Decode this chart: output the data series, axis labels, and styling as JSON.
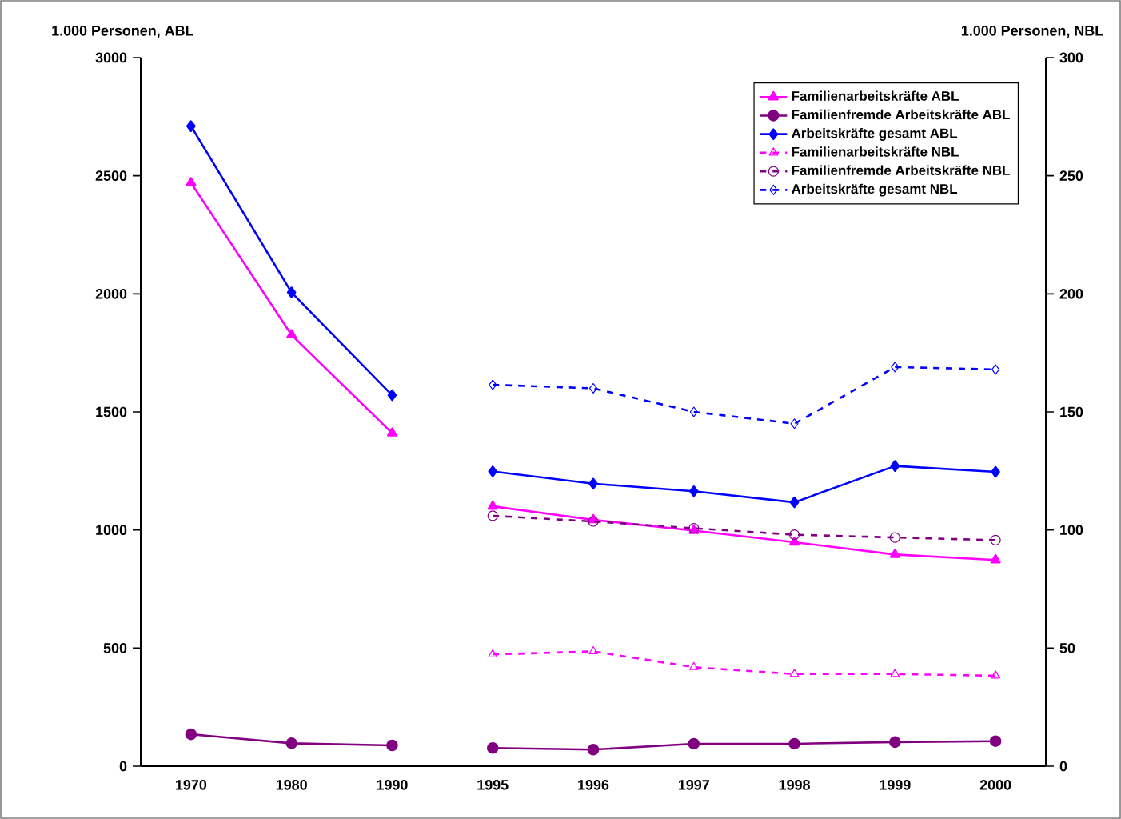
{
  "chart_data": {
    "type": "line",
    "ylabel": "1.000 Personen, ABL",
    "y2label": "1.000 Personen, NBL",
    "categories": [
      "1970",
      "1980",
      "1990",
      "1995",
      "1996",
      "1997",
      "1998",
      "1999",
      "2000"
    ],
    "ylim": [
      0,
      3000
    ],
    "yticks": [
      0,
      500,
      1000,
      1500,
      2000,
      2500,
      3000
    ],
    "y2lim": [
      0,
      300
    ],
    "y2ticks": [
      0,
      50,
      100,
      150,
      200,
      250,
      300
    ],
    "legend": "top right",
    "series": [
      {
        "name": "Familienarbeitskräfte ABL",
        "color": "#ff00ff",
        "marker": "triangle",
        "line_style": "solid",
        "values": [
          2470,
          1826,
          1410,
          null,
          null,
          null,
          null,
          null,
          null
        ]
      },
      {
        "name": "Familienfremde Arbeitskräfte ABL",
        "color": "#800080",
        "marker": "circle",
        "line_style": "solid",
        "values": [
          135,
          97,
          88,
          null,
          null,
          null,
          null,
          null,
          null
        ]
      },
      {
        "name": "Arbeitskräfte gesamt ABL",
        "color": "#0000ff",
        "marker": "diamond",
        "line_style": "solid",
        "values": [
          2710,
          2006,
          1571,
          null,
          null,
          null,
          null,
          null,
          null
        ]
      },
      {
        "name": "Familienarbeitskräfte NBL",
        "color": "#ff00ff",
        "marker": "triangle",
        "line_style": "dashed",
        "axis": "y2",
        "values": [
          null,
          null,
          null,
          47.3,
          48.6,
          41.9,
          39,
          39,
          38.3
        ]
      },
      {
        "name": "Familienfremde Arbeitskräfte NBL",
        "color": "#800080",
        "marker": "circle",
        "line_style": "dashed",
        "axis": "y2",
        "values": [
          null,
          null,
          null,
          106,
          103.6,
          100.7,
          98,
          96.8,
          95.7
        ]
      },
      {
        "name": "Arbeitskräfte gesamt NBL",
        "color": "#0000ff",
        "marker": "diamond",
        "line_style": "dashed",
        "axis": "y2",
        "values": [
          null,
          null,
          null,
          161.5,
          160,
          150,
          145,
          169,
          168
        ]
      },
      {
        "color": "#ff00ff",
        "marker": "triangle",
        "line_style": "solid",
        "values": [
          null,
          null,
          null,
          1100,
          1043,
          997,
          948,
          896,
          873
        ]
      },
      {
        "color": "#800080",
        "marker": "circle",
        "line_style": "solid",
        "values": [
          null,
          null,
          null,
          77,
          70,
          95,
          95,
          102,
          106
        ]
      },
      {
        "color": "#0000ff",
        "marker": "diamond",
        "line_style": "solid",
        "values": [
          null,
          null,
          null,
          1248,
          1196,
          1164,
          1117,
          1271,
          1246
        ]
      }
    ]
  }
}
